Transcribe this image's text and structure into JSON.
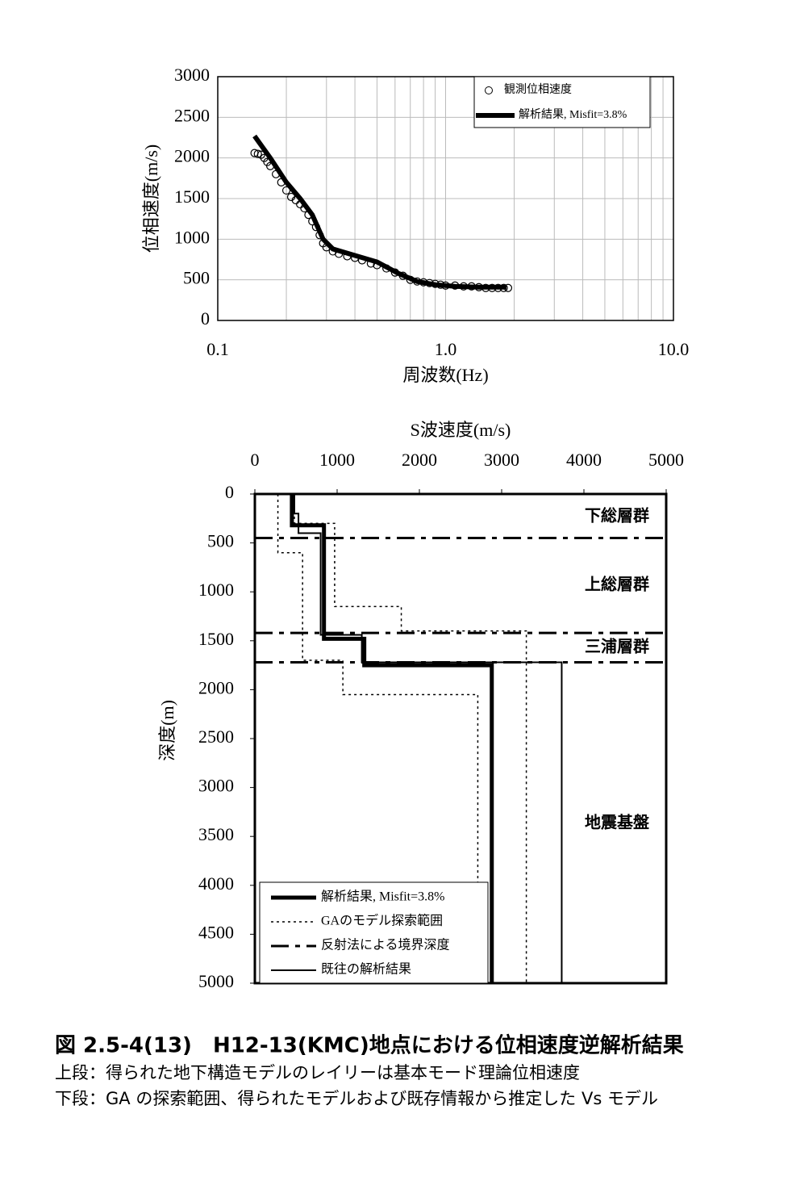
{
  "chart_data": [
    {
      "type": "line",
      "xscale": "log",
      "grid": true,
      "legend": "top-right",
      "xlabel": "周波数(Hz)",
      "ylabel": "位相速度(m/s)",
      "xlim": [
        0.1,
        10
      ],
      "xticks": [
        0.1,
        {
          "value": 1,
          "label": "1.0"
        },
        {
          "value": 10,
          "label": "10.0"
        }
      ],
      "ylim": [
        0,
        3000
      ],
      "yticks": [
        0,
        500,
        1000,
        1500,
        2000,
        2500,
        3000
      ],
      "series": [
        {
          "name": "観測位相速度",
          "marker": "circle",
          "color": "#000000",
          "x": [
            0.145,
            0.15,
            0.155,
            0.16,
            0.165,
            0.17,
            0.18,
            0.19,
            0.2,
            0.21,
            0.22,
            0.23,
            0.24,
            0.25,
            0.26,
            0.27,
            0.28,
            0.29,
            0.3,
            0.32,
            0.34,
            0.37,
            0.4,
            0.43,
            0.47,
            0.5,
            0.55,
            0.6,
            0.65,
            0.7,
            0.75,
            0.8,
            0.85,
            0.9,
            0.95,
            1.0,
            1.1,
            1.2,
            1.3,
            1.4,
            1.5,
            1.6,
            1.7,
            1.8,
            1.88
          ],
          "values": [
            2060,
            2050,
            2040,
            2000,
            1950,
            1900,
            1800,
            1700,
            1600,
            1520,
            1480,
            1430,
            1380,
            1300,
            1220,
            1150,
            1050,
            950,
            900,
            850,
            820,
            790,
            770,
            740,
            700,
            680,
            640,
            590,
            550,
            500,
            480,
            470,
            460,
            450,
            440,
            430,
            430,
            420,
            420,
            410,
            400,
            400,
            400,
            400,
            400
          ]
        },
        {
          "name": "解析結果, Misfit=3.8%",
          "color": "#000000",
          "x": [
            0.145,
            0.17,
            0.2,
            0.23,
            0.26,
            0.29,
            0.32,
            0.4,
            0.5,
            0.62,
            0.75,
            0.9,
            1.1,
            1.4,
            1.85
          ],
          "values": [
            2270,
            2000,
            1700,
            1500,
            1300,
            1000,
            880,
            800,
            720,
            580,
            480,
            440,
            420,
            410,
            410
          ]
        }
      ]
    },
    {
      "type": "profile",
      "xaxis_position": "top",
      "y_inverted": true,
      "legend": "bottom-left",
      "xlabel": "S波速度(m/s)",
      "ylabel": "深度(m)",
      "xlim": [
        0,
        5000
      ],
      "xticks": [
        0,
        1000,
        2000,
        3000,
        4000,
        5000
      ],
      "ylim": [
        0,
        5000
      ],
      "yticks": [
        0,
        500,
        1000,
        1500,
        2000,
        2500,
        3000,
        3500,
        4000,
        4500,
        5000
      ],
      "annotations": [
        "下総層群",
        "上総層群",
        "三浦層群",
        "地震基盤"
      ],
      "series": [
        {
          "name": "解析結果, Misfit=3.8%",
          "style": "solid",
          "width": 5,
          "color": "#000000",
          "pieces": [
            {
              "x": [
                450,
                450,
                840,
                840,
                1330,
                1330,
                2880,
                2880
              ],
              "y": [
                0,
                320,
                320,
                1480,
                1480,
                1750,
                1750,
                5000
              ]
            }
          ]
        },
        {
          "name": "GAのモデル探索範囲",
          "style": "dotted",
          "width": 1.5,
          "color": "#000000",
          "pieces": [
            {
              "x": [
                280,
                280,
                580,
                580,
                1070,
                1070,
                2710,
                2710
              ],
              "y": [
                0,
                600,
                600,
                1700,
                1700,
                2050,
                2050,
                4000
              ]
            },
            {
              "x": [
                480,
                480,
                970,
                970,
                1780,
                1780,
                3300,
                3300
              ],
              "y": [
                0,
                300,
                300,
                1150,
                1150,
                1400,
                1400,
                5000
              ]
            }
          ]
        },
        {
          "name": "反射法による境界深度",
          "style": "dashdot",
          "width": 3,
          "color": "#000000",
          "depths": [
            450,
            1420,
            1720
          ]
        },
        {
          "name": "既往の解析結果",
          "style": "solid",
          "width": 2,
          "color": "#000000",
          "pieces": [
            {
              "x": [
                480,
                480,
                530,
                530,
                800,
                800,
                1300,
                1300,
                3730,
                3730
              ],
              "y": [
                0,
                200,
                200,
                400,
                400,
                1440,
                1440,
                1720,
                1720,
                5000
              ]
            }
          ]
        }
      ]
    }
  ],
  "caption": {
    "title": "図 2.5-4(13)　H12-13(KMC)地点における位相速度逆解析結果",
    "lines": [
      "上段：得られた地下構造モデルのレイリーは基本モード理論位相速度",
      "下段：GA の探索範囲、得られたモデルおよび既存情報から推定した Vs モデル"
    ]
  }
}
